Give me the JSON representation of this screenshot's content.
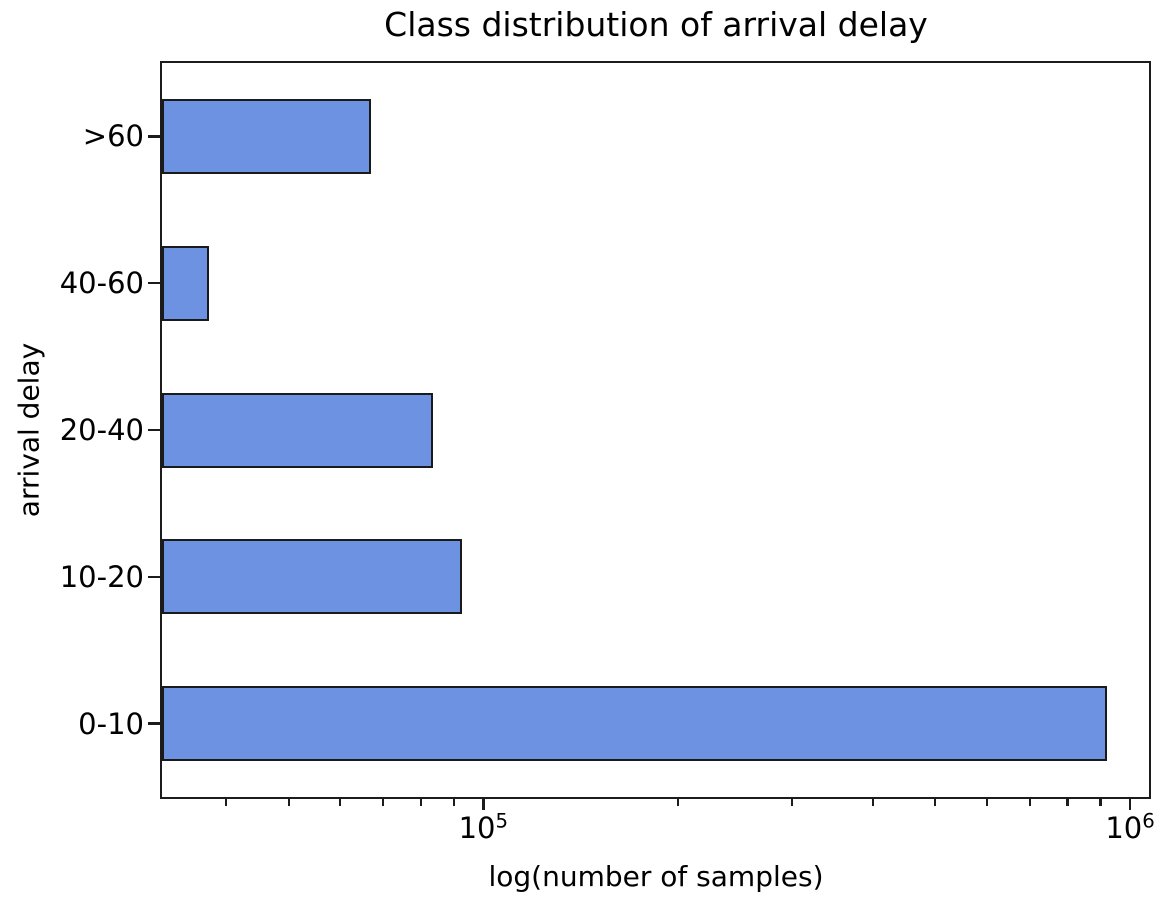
{
  "figure": {
    "background_color": "#ffffff",
    "text_color": "#000000",
    "axis_color": "#1c1c1c"
  },
  "chart_data": {
    "type": "bar",
    "orientation": "horizontal",
    "title": "Class distribution of arrival delay",
    "xlabel": "log(number of samples)",
    "ylabel": "arrival delay",
    "x_scale": "log",
    "xlim": [
      31855,
      1069600
    ],
    "grid": false,
    "categories": [
      ">60",
      "40-60",
      "20-40",
      "10-20",
      "0-10"
    ],
    "values": [
      67000,
      37600,
      83500,
      92800,
      920000
    ],
    "bar_color": "#6d92e1",
    "bar_edge_color": "#1a1a1a",
    "x_ticks_major": [
      {
        "value": 100000,
        "base": "10",
        "exp": "5"
      },
      {
        "value": 1000000,
        "base": "10",
        "exp": "6"
      }
    ],
    "x_ticks_minor": [
      40000,
      50000,
      60000,
      70000,
      80000,
      90000,
      200000,
      300000,
      400000,
      500000,
      600000,
      700000,
      800000,
      900000
    ]
  }
}
